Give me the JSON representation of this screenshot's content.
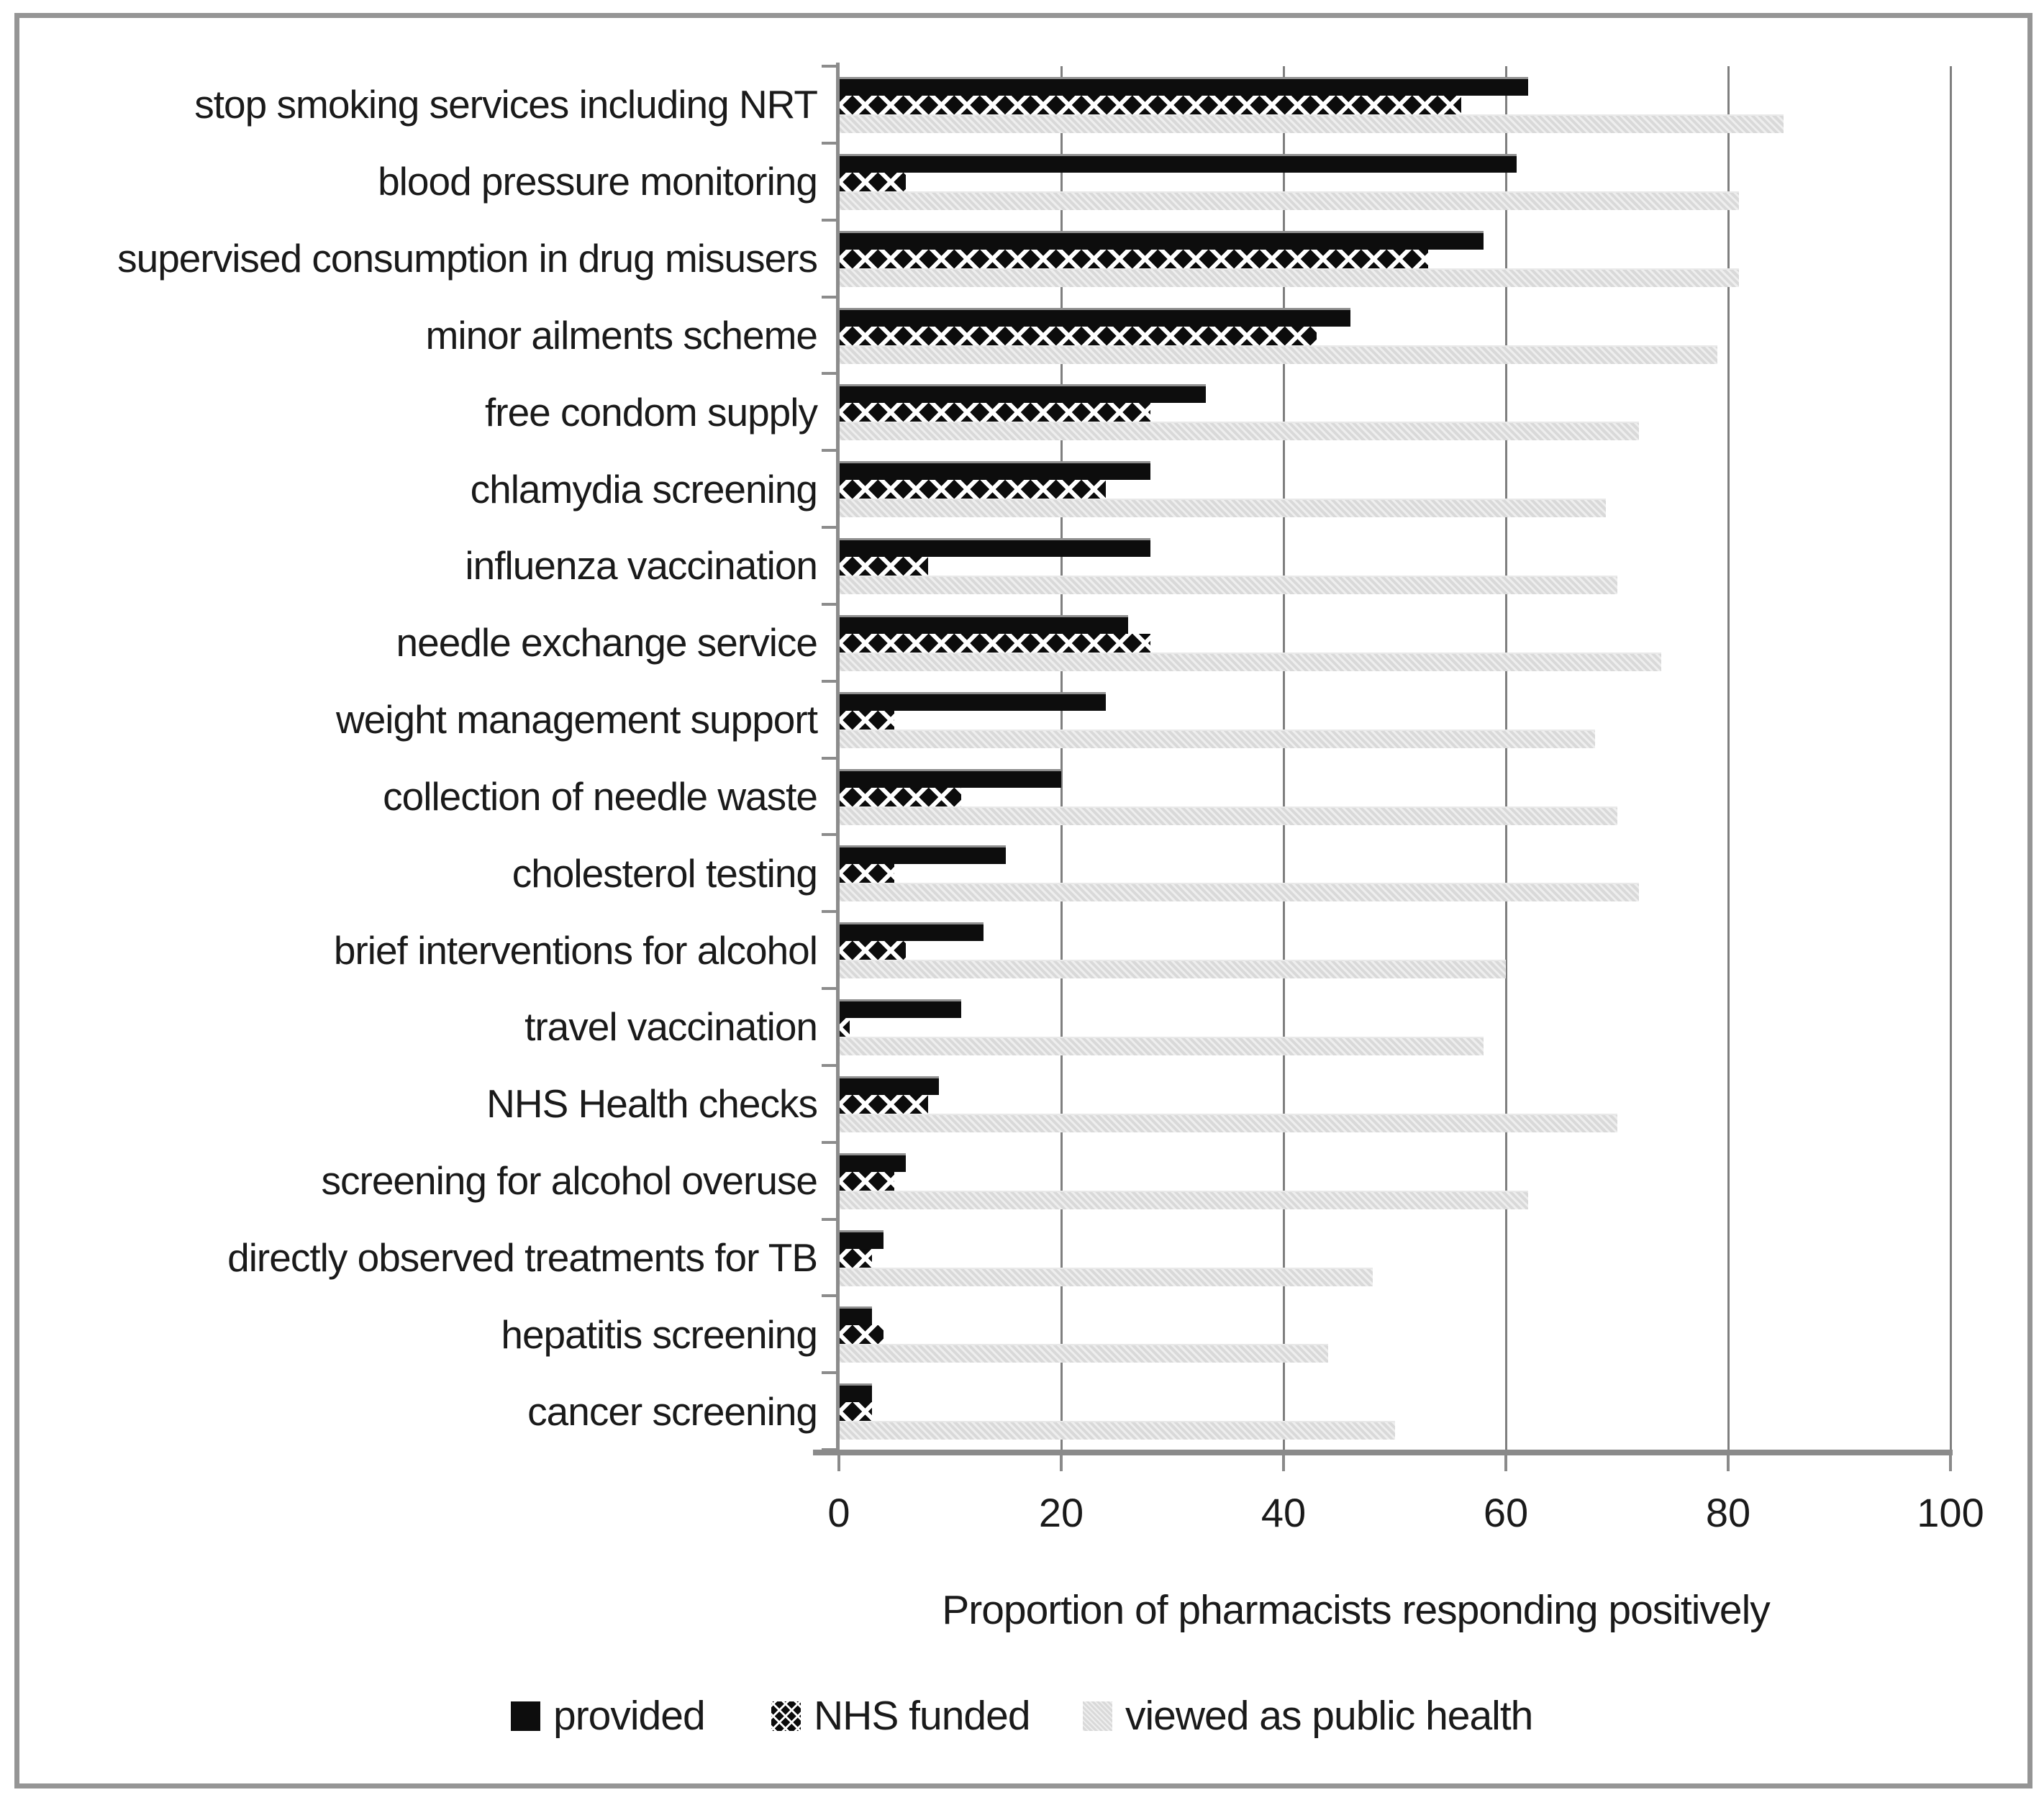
{
  "figure": {
    "background": "#ffffff",
    "frame_color": "#959595",
    "grid_color": "#7f7f7f",
    "axis_color": "#8a8a8a",
    "text_color": "#1a1a1a"
  },
  "chart_data": {
    "type": "bar",
    "orientation": "horizontal",
    "title": "",
    "xlabel": "Proportion of pharmacists responding positively",
    "ylabel": "",
    "xlim": [
      0,
      100
    ],
    "x_ticks": [
      0,
      20,
      40,
      60,
      80,
      100
    ],
    "grid": "vertical-gridlines-on",
    "legend_position": "bottom",
    "categories": [
      "stop smoking services including NRT",
      "blood pressure monitoring",
      "supervised consumption in drug misusers",
      "minor ailments scheme",
      "free condom supply",
      "chlamydia screening",
      "influenza vaccination",
      "needle exchange service",
      "weight management support",
      "collection of needle waste",
      "cholesterol testing",
      "brief interventions for alcohol",
      "travel vaccination",
      "NHS Health checks",
      "screening for alcohol overuse",
      "directly observed treatments for TB",
      "hepatitis screening",
      "cancer screening"
    ],
    "series": [
      {
        "name": "provided",
        "style": "solid-black",
        "color": "#0d0d0d",
        "values": [
          62,
          61,
          58,
          46,
          33,
          28,
          28,
          26,
          24,
          20,
          15,
          13,
          11,
          9,
          6,
          4,
          3,
          3
        ]
      },
      {
        "name": "NHS funded",
        "style": "black-white-crosshatch",
        "color": "#0c0c0c",
        "pattern_color": "#ffffff",
        "values": [
          56,
          6,
          53,
          43,
          28,
          24,
          8,
          28,
          5,
          11,
          5,
          6,
          1,
          8,
          5,
          3,
          4,
          3
        ]
      },
      {
        "name": "viewed as public health",
        "style": "light-gray",
        "color": "#d9d9d9",
        "values": [
          85,
          81,
          81,
          79,
          72,
          69,
          70,
          74,
          68,
          70,
          72,
          60,
          58,
          70,
          62,
          48,
          44,
          50
        ]
      }
    ]
  },
  "legend": {
    "items": [
      {
        "swatch": "black-square-icon",
        "label": "provided"
      },
      {
        "swatch": "crosshatch-square-icon",
        "label": "NHS funded"
      },
      {
        "swatch": "gray-square-icon",
        "label": "viewed as public health"
      }
    ]
  }
}
